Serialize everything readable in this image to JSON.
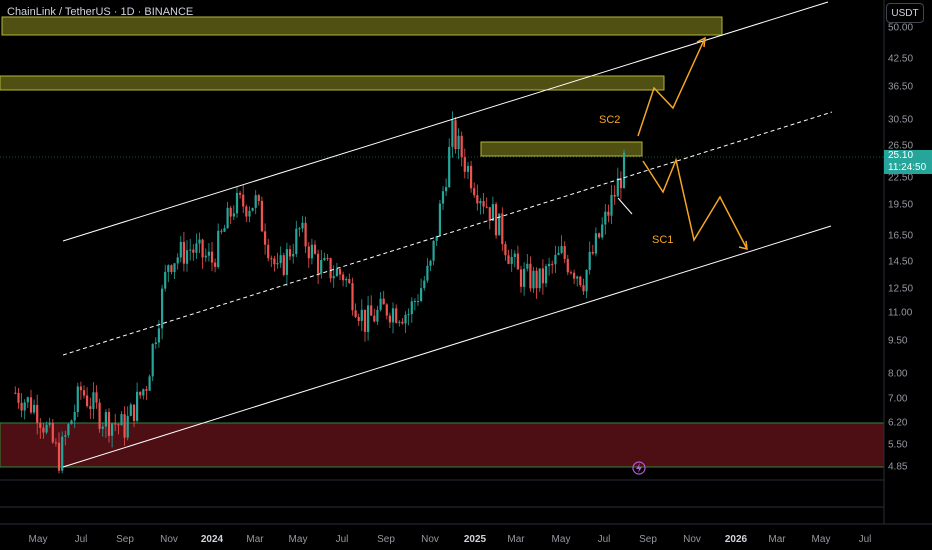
{
  "header": {
    "symbol_title": "ChainLink / TetherUS · 1D · BINANCE",
    "currency": "USDT"
  },
  "price_tag": {
    "price": "25.10",
    "countdown": "11:24:50",
    "color": "#26a69a"
  },
  "annotations": {
    "sc1": "SC1",
    "sc2": "SC2"
  },
  "colors": {
    "up": "#26a69a",
    "down": "#ef5350",
    "supply_zone": "#7a7a1a",
    "demand_zone": "#6b1a1a",
    "projection": "#f5a623",
    "channel": "#ffffff"
  },
  "chart_data": {
    "type": "candlestick",
    "title": "ChainLink / TetherUS · 1D · BINANCE",
    "y_scale": "log",
    "y_ticks": [
      "50.00",
      "42.50",
      "36.50",
      "30.50",
      "26.50",
      "22.50",
      "19.50",
      "16.50",
      "14.50",
      "12.50",
      "11.00",
      "9.50",
      "8.00",
      "7.00",
      "6.20",
      "5.50",
      "4.85"
    ],
    "x_ticks": [
      "May",
      "Jul",
      "Sep",
      "Nov",
      "2024",
      "Mar",
      "May",
      "Jul",
      "Sep",
      "Nov",
      "2025",
      "Mar",
      "May",
      "Jul",
      "Sep",
      "Nov",
      "2026",
      "Mar",
      "May",
      "Jul"
    ],
    "year_ticks": [
      "2024",
      "2025",
      "2026"
    ],
    "last_price": 25.1,
    "approx_closes": [
      {
        "date": "2023-04",
        "close": 7.2
      },
      {
        "date": "2023-05",
        "close": 6.6
      },
      {
        "date": "2023-06",
        "close": 5.1
      },
      {
        "date": "2023-07",
        "close": 7.3
      },
      {
        "date": "2023-08",
        "close": 6.3
      },
      {
        "date": "2023-09",
        "close": 6.0
      },
      {
        "date": "2023-10",
        "close": 7.6
      },
      {
        "date": "2023-11",
        "close": 14.5
      },
      {
        "date": "2023-12",
        "close": 15.5
      },
      {
        "date": "2024-01",
        "close": 14.5
      },
      {
        "date": "2024-02",
        "close": 19.5
      },
      {
        "date": "2024-03",
        "close": 19.8
      },
      {
        "date": "2024-04",
        "close": 13.5
      },
      {
        "date": "2024-05",
        "close": 17.0
      },
      {
        "date": "2024-06",
        "close": 14.0
      },
      {
        "date": "2024-07",
        "close": 13.5
      },
      {
        "date": "2024-08",
        "close": 10.5
      },
      {
        "date": "2024-09",
        "close": 11.3
      },
      {
        "date": "2024-10",
        "close": 11.0
      },
      {
        "date": "2024-11",
        "close": 14.0
      },
      {
        "date": "2024-12",
        "close": 28.5
      },
      {
        "date": "2025-01",
        "close": 22.0
      },
      {
        "date": "2025-02",
        "close": 18.0
      },
      {
        "date": "2025-03",
        "close": 13.5
      },
      {
        "date": "2025-04",
        "close": 13.0
      },
      {
        "date": "2025-05",
        "close": 15.0
      },
      {
        "date": "2025-06",
        "close": 13.2
      },
      {
        "date": "2025-07",
        "close": 18.0
      },
      {
        "date": "2025-08",
        "close": 25.1
      }
    ],
    "zones": [
      {
        "kind": "supply",
        "from": 48.5,
        "to": 52.0
      },
      {
        "kind": "supply",
        "from": 35.5,
        "to": 38.0
      },
      {
        "kind": "supply",
        "from": 25.5,
        "to": 27.2
      },
      {
        "kind": "demand",
        "from": 4.85,
        "to": 6.2
      }
    ],
    "scenarios": [
      "SC1",
      "SC2"
    ]
  }
}
